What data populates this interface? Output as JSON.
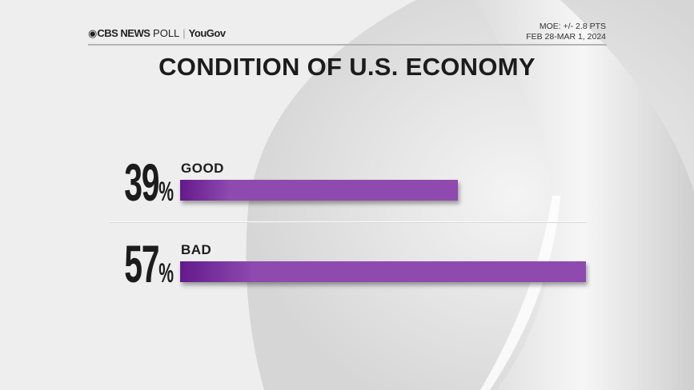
{
  "header": {
    "brand": "CBS NEWS",
    "brand_suffix": "POLL",
    "partner": "YouGov",
    "moe": "MOE: +/- 2.8 PTS",
    "dates": "FEB 28-MAR 1, 2024"
  },
  "chart_data": {
    "type": "bar",
    "orientation": "horizontal",
    "title": "CONDITION OF U.S. ECONOMY",
    "categories": [
      "GOOD",
      "BAD"
    ],
    "values": [
      39,
      57
    ],
    "value_labels": [
      "39",
      "57"
    ],
    "unit": "%",
    "bar_color": "#8e4aaf",
    "bar_color_dark": "#641a8c"
  }
}
